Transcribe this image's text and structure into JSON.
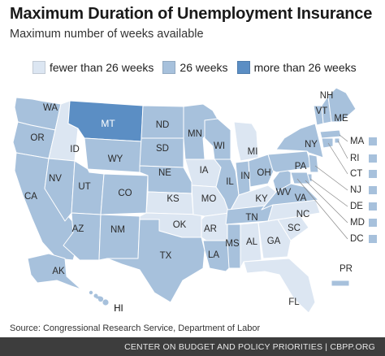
{
  "title": "Maximum Duration of Unemployment Insurance",
  "subtitle": "Maximum number of weeks available",
  "legend": [
    {
      "label": "fewer than 26 weeks",
      "color": "#dce6f2",
      "category": "lt26"
    },
    {
      "label": "26 weeks",
      "color": "#a7c1dc",
      "category": "26"
    },
    {
      "label": "more than 26 weeks",
      "color": "#5b8ec4",
      "category": "gt26"
    }
  ],
  "colors": {
    "lt26": "#dce6f2",
    "26": "#a7c1dc",
    "gt26": "#5b8ec4",
    "outline": "#ffffff",
    "footer": "#3d3d3d"
  },
  "states": {
    "WA": "26",
    "OR": "26",
    "CA": "26",
    "ID": "lt26",
    "NV": "26",
    "MT": "gt26",
    "WY": "26",
    "UT": "26",
    "AZ": "26",
    "CO": "26",
    "NM": "26",
    "ND": "26",
    "SD": "26",
    "NE": "26",
    "KS": "lt26",
    "OK": "lt26",
    "TX": "26",
    "MN": "26",
    "IA": "lt26",
    "MO": "lt26",
    "AR": "lt26",
    "LA": "26",
    "WI": "26",
    "IL": "26",
    "MI": "lt26",
    "IN": "26",
    "KY": "lt26",
    "TN": "26",
    "MS": "26",
    "AL": "lt26",
    "GA": "lt26",
    "FL": "lt26",
    "SC": "lt26",
    "NC": "lt26",
    "VA": "26",
    "WV": "26",
    "OH": "26",
    "PA": "26",
    "NY": "26",
    "VT": "26",
    "NH": "26",
    "ME": "26",
    "MA": "26",
    "RI": "26",
    "CT": "26",
    "NJ": "26",
    "DE": "26",
    "MD": "26",
    "DC": "26",
    "AK": "26",
    "HI": "26",
    "PR": "26"
  },
  "small_state_labels": [
    "MA",
    "RI",
    "CT",
    "NJ",
    "DE",
    "MD",
    "DC"
  ],
  "source": "Source: Congressional Research Service, Department of Labor",
  "footer": "CENTER ON BUDGET AND POLICY PRIORITIES | CBPP.ORG"
}
